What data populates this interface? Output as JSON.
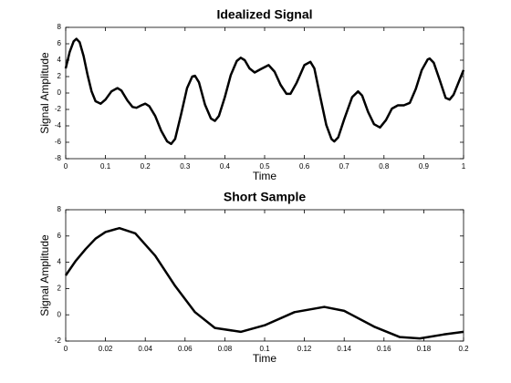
{
  "chart_data": [
    {
      "type": "line",
      "title": "Idealized Signal",
      "x_label": "Time",
      "y_label": "Signal Amplitude",
      "xlim": [
        0,
        1
      ],
      "ylim": [
        -8,
        8
      ],
      "xticks": [
        0,
        0.1,
        0.2,
        0.3,
        0.4,
        0.5,
        0.6,
        0.7,
        0.8,
        0.9,
        1
      ],
      "yticks": [
        -8,
        -6,
        -4,
        -2,
        0,
        2,
        4,
        6,
        8
      ],
      "series": [
        {
          "color": "#000000",
          "x": [
            0,
            0.01,
            0.02,
            0.027,
            0.035,
            0.045,
            0.055,
            0.065,
            0.075,
            0.088,
            0.1,
            0.115,
            0.13,
            0.14,
            0.155,
            0.168,
            0.178,
            0.19,
            0.2,
            0.21,
            0.225,
            0.24,
            0.255,
            0.265,
            0.275,
            0.29,
            0.305,
            0.318,
            0.325,
            0.335,
            0.35,
            0.365,
            0.375,
            0.385,
            0.4,
            0.415,
            0.43,
            0.44,
            0.45,
            0.462,
            0.475,
            0.49,
            0.51,
            0.525,
            0.54,
            0.555,
            0.565,
            0.58,
            0.6,
            0.615,
            0.625,
            0.64,
            0.655,
            0.668,
            0.675,
            0.685,
            0.7,
            0.72,
            0.735,
            0.745,
            0.76,
            0.775,
            0.79,
            0.805,
            0.82,
            0.835,
            0.85,
            0.865,
            0.88,
            0.895,
            0.91,
            0.915,
            0.925,
            0.94,
            0.955,
            0.965,
            0.975,
            0.99,
            1.0
          ],
          "values": [
            3.0,
            5.0,
            6.3,
            6.6,
            6.2,
            4.5,
            2.2,
            0.2,
            -1.0,
            -1.3,
            -0.8,
            0.2,
            0.6,
            0.3,
            -0.9,
            -1.7,
            -1.8,
            -1.5,
            -1.3,
            -1.6,
            -2.8,
            -4.6,
            -5.9,
            -6.2,
            -5.6,
            -2.6,
            0.6,
            2.0,
            2.1,
            1.3,
            -1.4,
            -3.1,
            -3.4,
            -2.8,
            -0.5,
            2.2,
            3.9,
            4.3,
            4.0,
            3.0,
            2.5,
            2.9,
            3.4,
            2.6,
            1.0,
            -0.1,
            -0.1,
            1.2,
            3.4,
            3.8,
            3.0,
            -0.5,
            -3.9,
            -5.6,
            -5.9,
            -5.4,
            -3.2,
            -0.5,
            0.2,
            -0.3,
            -2.3,
            -3.8,
            -4.2,
            -3.3,
            -1.9,
            -1.5,
            -1.5,
            -1.2,
            0.5,
            2.8,
            4.1,
            4.2,
            3.7,
            1.6,
            -0.6,
            -0.8,
            -0.2,
            1.6,
            2.8
          ]
        }
      ]
    },
    {
      "type": "line",
      "title": "Short Sample",
      "x_label": "Time",
      "y_label": "Signal Amplitude",
      "xlim": [
        0,
        0.2
      ],
      "ylim": [
        -2,
        8
      ],
      "xticks": [
        0,
        0.02,
        0.04,
        0.06,
        0.08,
        0.1,
        0.12,
        0.14,
        0.16,
        0.18,
        0.2
      ],
      "yticks": [
        -2,
        0,
        2,
        4,
        6,
        8
      ],
      "series": [
        {
          "color": "#000000",
          "x": [
            0,
            0.005,
            0.01,
            0.015,
            0.02,
            0.027,
            0.035,
            0.045,
            0.055,
            0.065,
            0.075,
            0.088,
            0.1,
            0.115,
            0.13,
            0.14,
            0.155,
            0.168,
            0.178,
            0.19,
            0.2
          ],
          "values": [
            3.0,
            4.1,
            5.0,
            5.8,
            6.3,
            6.6,
            6.2,
            4.5,
            2.2,
            0.2,
            -1.0,
            -1.3,
            -0.8,
            0.2,
            0.6,
            0.3,
            -0.9,
            -1.7,
            -1.8,
            -1.5,
            -1.3
          ]
        }
      ]
    }
  ]
}
